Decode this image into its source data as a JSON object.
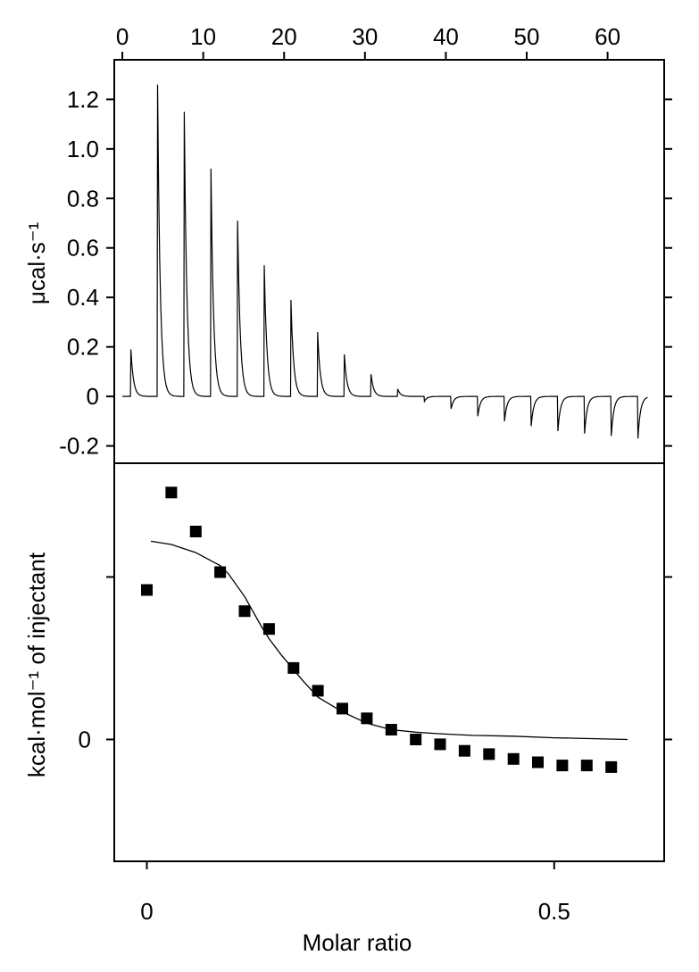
{
  "chart_data": [
    {
      "type": "line",
      "panel": "thermogram",
      "top_axis": {
        "label": "",
        "ticks": [
          0,
          10,
          20,
          30,
          40,
          50,
          60
        ],
        "tick_labels": [
          "0",
          "10",
          "20",
          "30",
          "40",
          "50",
          "60"
        ],
        "range": [
          -1,
          67
        ]
      },
      "ylabel": "μcal·s⁻¹",
      "ylim": [
        -0.27,
        1.36
      ],
      "y_ticks": [
        -0.2,
        0,
        0.2,
        0.4,
        0.6,
        0.8,
        1.0,
        1.2
      ],
      "y_tick_labels": [
        "-0.2",
        "0",
        "0.2",
        "0.4",
        "0.6",
        "0.8",
        "1.0",
        "1.2"
      ],
      "grid": false,
      "baseline": 0,
      "injections": [
        {
          "x": 1.0,
          "peak": 0.19
        },
        {
          "x": 4.3,
          "peak": 1.26
        },
        {
          "x": 7.6,
          "peak": 1.15
        },
        {
          "x": 10.9,
          "peak": 0.92
        },
        {
          "x": 14.2,
          "peak": 0.71
        },
        {
          "x": 17.5,
          "peak": 0.53
        },
        {
          "x": 20.8,
          "peak": 0.39
        },
        {
          "x": 24.1,
          "peak": 0.26
        },
        {
          "x": 27.4,
          "peak": 0.17
        },
        {
          "x": 30.7,
          "peak": 0.09
        },
        {
          "x": 34.0,
          "peak": 0.03
        },
        {
          "x": 37.3,
          "peak": -0.02
        },
        {
          "x": 40.6,
          "peak": -0.05
        },
        {
          "x": 43.9,
          "peak": -0.08
        },
        {
          "x": 47.2,
          "peak": -0.1
        },
        {
          "x": 50.5,
          "peak": -0.12
        },
        {
          "x": 53.8,
          "peak": -0.14
        },
        {
          "x": 57.1,
          "peak": -0.15
        },
        {
          "x": 60.4,
          "peak": -0.16
        },
        {
          "x": 63.7,
          "peak": -0.17
        }
      ]
    },
    {
      "type": "scatter",
      "panel": "binding-isotherm",
      "xlabel": "Molar ratio",
      "ylabel": "kcal·mol⁻¹ of injectant",
      "xlim": [
        -0.04,
        0.635
      ],
      "ylim": [
        -0.75,
        1.7
      ],
      "x_ticks": [
        0,
        0.5
      ],
      "x_tick_labels": [
        "0",
        "0.5"
      ],
      "y_ticks": [
        0,
        1
      ],
      "y_tick_labels": [
        "0",
        ""
      ],
      "grid": false,
      "points": [
        {
          "x": 0.0,
          "y": 0.92
        },
        {
          "x": 0.03,
          "y": 1.52
        },
        {
          "x": 0.06,
          "y": 1.28
        },
        {
          "x": 0.09,
          "y": 1.03
        },
        {
          "x": 0.12,
          "y": 0.79
        },
        {
          "x": 0.15,
          "y": 0.68
        },
        {
          "x": 0.18,
          "y": 0.44
        },
        {
          "x": 0.21,
          "y": 0.3
        },
        {
          "x": 0.24,
          "y": 0.19
        },
        {
          "x": 0.27,
          "y": 0.13
        },
        {
          "x": 0.3,
          "y": 0.06
        },
        {
          "x": 0.33,
          "y": 0.0
        },
        {
          "x": 0.36,
          "y": -0.03
        },
        {
          "x": 0.39,
          "y": -0.07
        },
        {
          "x": 0.42,
          "y": -0.09
        },
        {
          "x": 0.45,
          "y": -0.12
        },
        {
          "x": 0.48,
          "y": -0.14
        },
        {
          "x": 0.51,
          "y": -0.16
        },
        {
          "x": 0.54,
          "y": -0.16
        },
        {
          "x": 0.57,
          "y": -0.17
        }
      ],
      "fit": {
        "x": [
          0.005,
          0.03,
          0.06,
          0.09,
          0.1,
          0.12,
          0.14,
          0.15,
          0.165,
          0.19,
          0.21,
          0.24,
          0.27,
          0.3,
          0.33,
          0.36,
          0.4,
          0.45,
          0.5,
          0.55,
          0.59
        ],
        "y": [
          1.22,
          1.2,
          1.15,
          1.07,
          1.02,
          0.88,
          0.7,
          0.62,
          0.52,
          0.37,
          0.26,
          0.17,
          0.1,
          0.06,
          0.045,
          0.035,
          0.025,
          0.02,
          0.01,
          0.005,
          0.0
        ]
      }
    }
  ]
}
